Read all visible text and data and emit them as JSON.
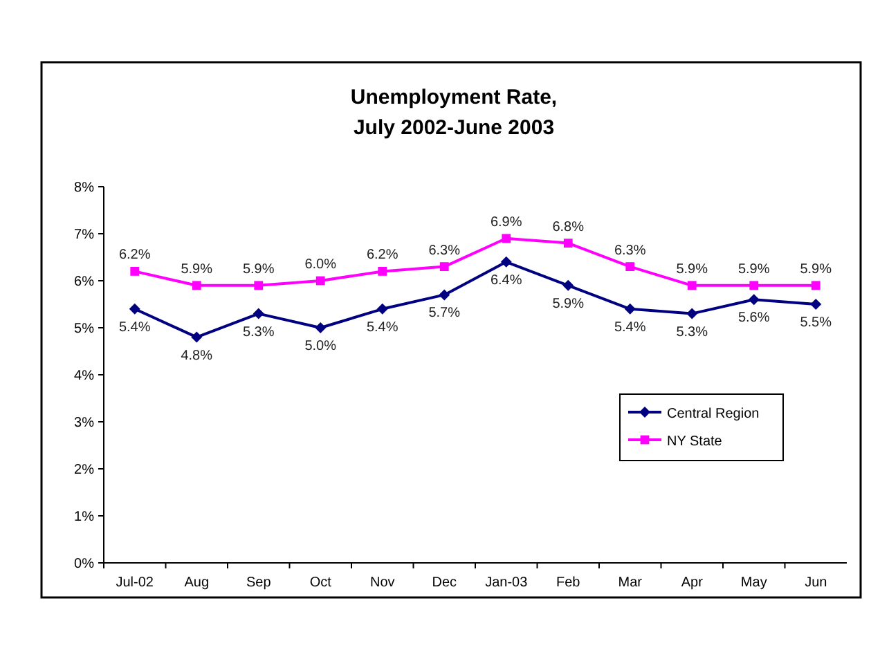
{
  "chart_data": {
    "type": "line",
    "title": "Unemployment Rate,\nJuly 2002-June 2003",
    "categories": [
      "Jul-02",
      "Aug",
      "Sep",
      "Oct",
      "Nov",
      "Dec",
      "Jan-03",
      "Feb",
      "Mar",
      "Apr",
      "May",
      "Jun"
    ],
    "series": [
      {
        "name": "Central Region",
        "color": "#000080",
        "marker": "diamond",
        "values": [
          5.4,
          4.8,
          5.3,
          5.0,
          5.4,
          5.7,
          6.4,
          5.9,
          5.4,
          5.3,
          5.6,
          5.5
        ],
        "value_labels": [
          "5.4%",
          "4.8%",
          "5.3%",
          "5.0%",
          "5.4%",
          "5.7%",
          "6.4%",
          "5.9%",
          "5.4%",
          "5.3%",
          "5.6%",
          "5.5%"
        ]
      },
      {
        "name": "NY State",
        "color": "#ff00ff",
        "marker": "square",
        "values": [
          6.2,
          5.9,
          5.9,
          6.0,
          6.2,
          6.3,
          6.9,
          6.8,
          6.3,
          5.9,
          5.9,
          5.9
        ],
        "value_labels": [
          "6.2%",
          "5.9%",
          "5.9%",
          "6.0%",
          "6.2%",
          "6.3%",
          "6.9%",
          "6.8%",
          "6.3%",
          "5.9%",
          "5.9%",
          "5.9%"
        ]
      }
    ],
    "ylim": [
      0,
      8
    ],
    "yticks": [
      {
        "value": 0,
        "label": "0%"
      },
      {
        "value": 1,
        "label": "1%"
      },
      {
        "value": 2,
        "label": "2%"
      },
      {
        "value": 3,
        "label": "3%"
      },
      {
        "value": 4,
        "label": "4%"
      },
      {
        "value": 5,
        "label": "5%"
      },
      {
        "value": 6,
        "label": "6%"
      },
      {
        "value": 7,
        "label": "7%"
      },
      {
        "value": 8,
        "label": "8%"
      }
    ],
    "grid": false,
    "legend": "right"
  }
}
